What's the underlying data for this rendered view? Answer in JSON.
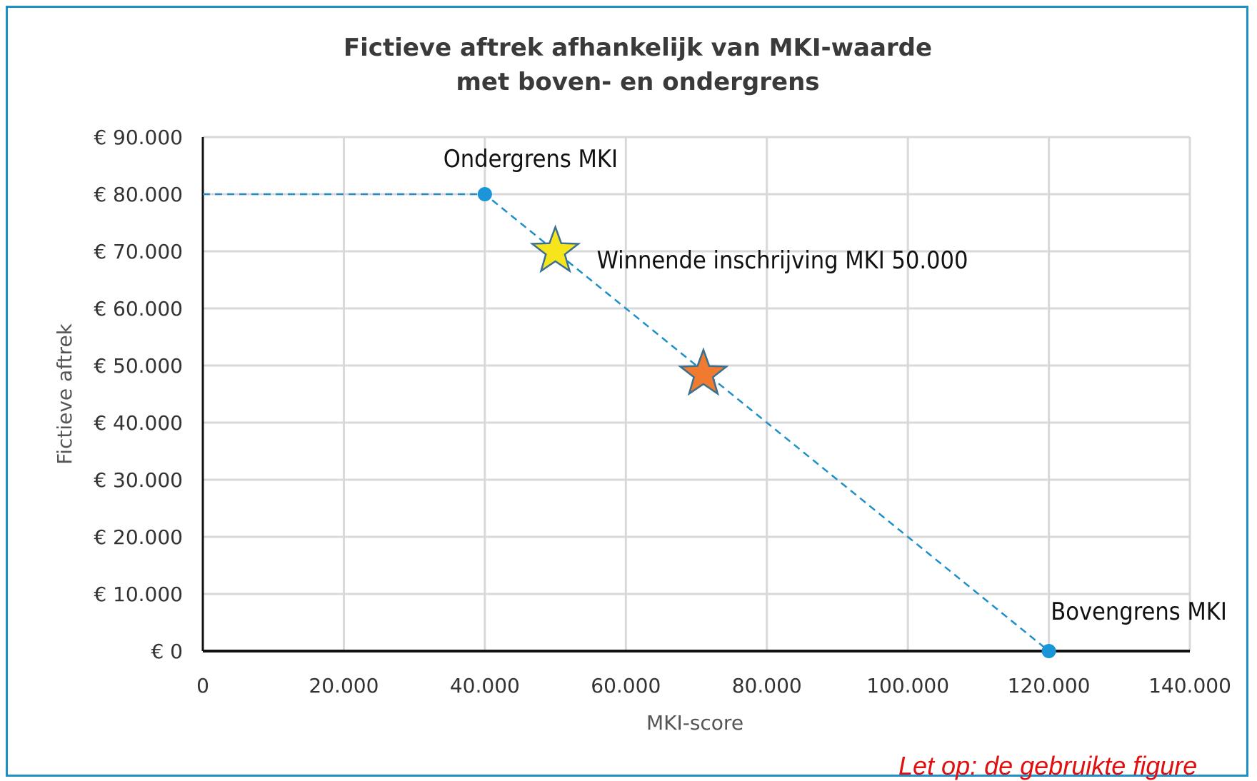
{
  "chart_data": {
    "type": "scatter",
    "title": [
      "Fictieve aftrek afhankelijk van MKI-waarde",
      "met boven- en ondergrens"
    ],
    "xlabel": "MKI-score",
    "ylabel": "Fictieve aftrek",
    "xlim": [
      0,
      140000
    ],
    "ylim": [
      0,
      90000
    ],
    "x_ticks": [
      0,
      20000,
      40000,
      60000,
      80000,
      100000,
      120000,
      140000
    ],
    "x_tick_labels": [
      "0",
      "20.000",
      "40.000",
      "60.000",
      "80.000",
      "100.000",
      "120.000",
      "140.000"
    ],
    "y_ticks": [
      0,
      10000,
      20000,
      30000,
      40000,
      50000,
      60000,
      70000,
      80000,
      90000
    ],
    "y_tick_labels": [
      "€ 0",
      "€ 10.000",
      "€ 20.000",
      "€ 30.000",
      "€ 40.000",
      "€ 50.000",
      "€ 60.000",
      "€ 70.000",
      "€ 80.000",
      "€ 90.000"
    ],
    "grid": true,
    "line_series": {
      "style": "dashed",
      "color": "#1f8fc8",
      "x": [
        0,
        40000,
        120000
      ],
      "y": [
        80000,
        80000,
        0
      ]
    },
    "points": [
      {
        "x": 40000,
        "y": 80000,
        "marker": "circle",
        "color": "#1a95d8",
        "label": "Ondergrens MKI"
      },
      {
        "x": 120000,
        "y": 0,
        "marker": "circle",
        "color": "#1a95d8",
        "label": "Bovengrens MKI"
      },
      {
        "x": 50000,
        "y": 70000,
        "marker": "star",
        "color": "#f7e51c",
        "label": "Winnende inschrijving MKI 50.000"
      },
      {
        "x": 71000,
        "y": 48500,
        "marker": "star",
        "color": "#f07a30",
        "label": ""
      }
    ]
  },
  "footer_note": "Let op: de gebruikte figure"
}
